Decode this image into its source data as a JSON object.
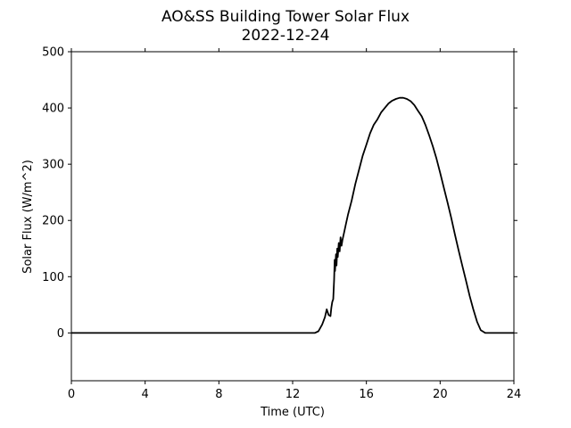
{
  "chart_data": {
    "type": "line",
    "title": "AO&SS Building Tower Solar Flux",
    "subtitle": "2022-12-24",
    "xlabel": "Time (UTC)",
    "ylabel": "Solar Flux (W/m^2)",
    "xlim": [
      0,
      24
    ],
    "ylim": [
      -85,
      500
    ],
    "xticks": [
      "0",
      "4",
      "8",
      "12",
      "16",
      "20",
      "24"
    ],
    "yticks": [
      "0",
      "100",
      "200",
      "300",
      "400",
      "500"
    ],
    "grid": false,
    "line_color": "#000000",
    "series": [
      {
        "x": [
          0,
          4,
          8,
          12,
          13.0,
          13.2,
          13.4,
          13.6,
          13.75,
          13.85,
          13.95,
          14.05,
          14.1,
          14.15,
          14.2,
          14.25,
          14.28,
          14.3,
          14.35,
          14.38,
          14.42,
          14.45,
          14.5,
          14.55,
          14.6,
          14.65,
          14.7,
          14.8,
          14.9,
          15.0,
          15.2,
          15.4,
          15.6,
          15.8,
          16.0,
          16.2,
          16.4,
          16.6,
          16.8,
          17.0,
          17.2,
          17.4,
          17.6,
          17.8,
          18.0,
          18.2,
          18.4,
          18.6,
          18.8,
          19.0,
          19.2,
          19.4,
          19.6,
          19.8,
          20.0,
          20.2,
          20.4,
          20.6,
          20.8,
          21.0,
          21.2,
          21.4,
          21.6,
          21.8,
          22.0,
          22.2,
          22.4,
          22.45,
          22.5,
          22.6,
          23.0,
          24.0
        ],
        "y": [
          0,
          0,
          0,
          0,
          0,
          0,
          3,
          15,
          28,
          42,
          32,
          30,
          45,
          55,
          60,
          95,
          130,
          110,
          140,
          120,
          150,
          135,
          160,
          145,
          170,
          155,
          165,
          180,
          195,
          210,
          235,
          265,
          290,
          315,
          335,
          355,
          370,
          380,
          392,
          400,
          408,
          413,
          416,
          418,
          418,
          416,
          412,
          405,
          395,
          385,
          370,
          352,
          332,
          310,
          285,
          258,
          232,
          205,
          175,
          147,
          120,
          93,
          66,
          42,
          20,
          5,
          1,
          0,
          0,
          0,
          0,
          0
        ]
      }
    ]
  }
}
